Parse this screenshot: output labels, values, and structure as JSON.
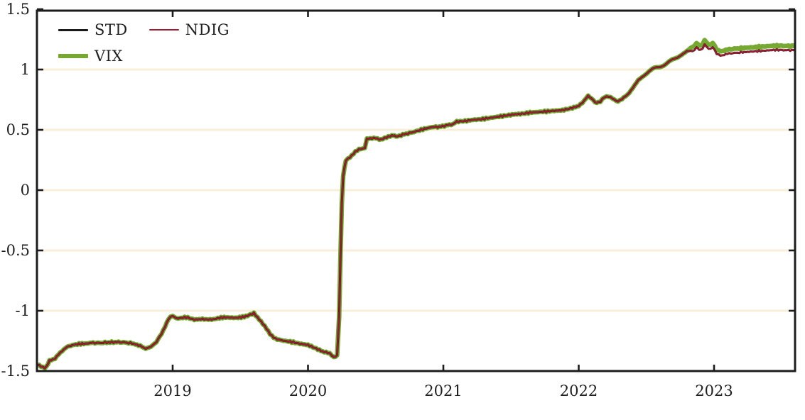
{
  "figure": {
    "background": "#ffffff",
    "axis_color": "#1c1c1c",
    "grid_color": "#f8efda",
    "tick_label_color": "#1f1f1f"
  },
  "chart_data": {
    "type": "line",
    "title": "",
    "xlabel": "",
    "ylabel": "",
    "grid": "horizontal",
    "legend_position": "top-left-inside",
    "x_axis": {
      "ticks": [
        2019,
        2020,
        2021,
        2022,
        2023
      ],
      "tick_labels": [
        "2019",
        "2020",
        "2021",
        "2022",
        "2023"
      ],
      "range": [
        2017.97,
        2023.62
      ]
    },
    "y_axis": {
      "ticks": [
        1.5,
        1,
        0.5,
        0,
        -0.5,
        -1,
        -1.5
      ],
      "tick_labels": [
        "1.5",
        "1",
        "0.5",
        "0",
        "-0.5",
        "-1",
        "-1.5"
      ],
      "range": [
        -1.5,
        1.5
      ],
      "gridline_ticks": [
        1,
        0.5,
        0,
        -0.5,
        -1
      ]
    },
    "x": [
      2017.97,
      2018.0,
      2018.04,
      2018.07,
      2018.09,
      2018.13,
      2018.17,
      2018.21,
      2018.26,
      2018.32,
      2018.4,
      2018.5,
      2018.6,
      2018.7,
      2018.76,
      2018.8,
      2018.84,
      2018.88,
      2018.93,
      2018.97,
      2019.0,
      2019.04,
      2019.1,
      2019.16,
      2019.22,
      2019.3,
      2019.38,
      2019.46,
      2019.54,
      2019.6,
      2019.64,
      2019.68,
      2019.72,
      2019.76,
      2019.82,
      2019.88,
      2019.94,
      2020.0,
      2020.06,
      2020.12,
      2020.16,
      2020.19,
      2020.215,
      2020.23,
      2020.24,
      2020.25,
      2020.26,
      2020.28,
      2020.31,
      2020.35,
      2020.39,
      2020.42,
      2020.435,
      2020.46,
      2020.5,
      2020.54,
      2020.58,
      2020.62,
      2020.65,
      2020.7,
      2020.75,
      2020.8,
      2020.86,
      2020.92,
      2020.97,
      2021.02,
      2021.07,
      2021.1,
      2021.16,
      2021.22,
      2021.28,
      2021.34,
      2021.4,
      2021.46,
      2021.52,
      2021.58,
      2021.64,
      2021.7,
      2021.76,
      2021.82,
      2021.88,
      2021.94,
      2022.0,
      2022.04,
      2022.07,
      2022.09,
      2022.12,
      2022.16,
      2022.19,
      2022.22,
      2022.25,
      2022.29,
      2022.32,
      2022.36,
      2022.4,
      2022.44,
      2022.48,
      2022.52,
      2022.56,
      2022.6,
      2022.64,
      2022.68,
      2022.72,
      2022.76,
      2022.8,
      2022.84,
      2022.87,
      2022.9,
      2022.93,
      2022.96,
      2022.99,
      2023.02,
      2023.06,
      2023.1,
      2023.15,
      2023.2,
      2023.26,
      2023.32,
      2023.38,
      2023.44,
      2023.5,
      2023.55,
      2023.6
    ],
    "series": [
      {
        "name": "STD",
        "color": "#1a1a1a",
        "line_width": 3,
        "values": [
          -1.44,
          -1.45,
          -1.47,
          -1.46,
          -1.41,
          -1.4,
          -1.35,
          -1.3,
          -1.28,
          -1.27,
          -1.265,
          -1.26,
          -1.265,
          -1.27,
          -1.29,
          -1.31,
          -1.3,
          -1.26,
          -1.16,
          -1.07,
          -1.04,
          -1.06,
          -1.05,
          -1.07,
          -1.065,
          -1.07,
          -1.06,
          -1.055,
          -1.045,
          -1.02,
          -1.07,
          -1.13,
          -1.19,
          -1.23,
          -1.245,
          -1.255,
          -1.27,
          -1.28,
          -1.31,
          -1.34,
          -1.36,
          -1.38,
          -1.37,
          -1.05,
          -0.55,
          -0.1,
          0.12,
          0.24,
          0.28,
          0.32,
          0.34,
          0.355,
          0.42,
          0.425,
          0.435,
          0.42,
          0.43,
          0.455,
          0.44,
          0.455,
          0.47,
          0.49,
          0.51,
          0.525,
          0.53,
          0.54,
          0.545,
          0.57,
          0.575,
          0.585,
          0.59,
          0.6,
          0.61,
          0.62,
          0.63,
          0.635,
          0.645,
          0.65,
          0.655,
          0.66,
          0.665,
          0.68,
          0.7,
          0.74,
          0.78,
          0.76,
          0.73,
          0.735,
          0.77,
          0.78,
          0.755,
          0.74,
          0.75,
          0.79,
          0.85,
          0.91,
          0.95,
          0.985,
          1.01,
          1.025,
          1.045,
          1.07,
          1.095,
          1.125,
          1.15,
          1.155,
          1.18,
          1.165,
          1.2,
          1.175,
          1.18,
          1.135,
          1.12,
          1.125,
          1.135,
          1.145,
          1.15,
          1.155,
          1.16,
          1.165,
          1.165,
          1.165,
          1.165
        ]
      },
      {
        "name": "NDIG",
        "color": "#a11a31",
        "line_width": 2.2,
        "values": [
          -1.44,
          -1.45,
          -1.47,
          -1.46,
          -1.41,
          -1.4,
          -1.35,
          -1.3,
          -1.28,
          -1.27,
          -1.265,
          -1.26,
          -1.265,
          -1.27,
          -1.29,
          -1.31,
          -1.3,
          -1.26,
          -1.16,
          -1.07,
          -1.04,
          -1.06,
          -1.05,
          -1.07,
          -1.065,
          -1.07,
          -1.06,
          -1.055,
          -1.045,
          -1.02,
          -1.07,
          -1.13,
          -1.19,
          -1.23,
          -1.245,
          -1.255,
          -1.27,
          -1.28,
          -1.31,
          -1.34,
          -1.36,
          -1.38,
          -1.37,
          -1.05,
          -0.55,
          -0.1,
          0.12,
          0.24,
          0.28,
          0.32,
          0.34,
          0.355,
          0.42,
          0.425,
          0.435,
          0.42,
          0.43,
          0.455,
          0.44,
          0.455,
          0.47,
          0.49,
          0.51,
          0.525,
          0.53,
          0.54,
          0.545,
          0.57,
          0.575,
          0.585,
          0.59,
          0.6,
          0.61,
          0.62,
          0.63,
          0.635,
          0.645,
          0.65,
          0.655,
          0.66,
          0.665,
          0.68,
          0.7,
          0.74,
          0.78,
          0.76,
          0.73,
          0.735,
          0.77,
          0.78,
          0.755,
          0.74,
          0.75,
          0.79,
          0.85,
          0.91,
          0.95,
          0.985,
          1.01,
          1.025,
          1.045,
          1.07,
          1.095,
          1.125,
          1.15,
          1.155,
          1.18,
          1.165,
          1.2,
          1.175,
          1.18,
          1.135,
          1.12,
          1.125,
          1.135,
          1.145,
          1.15,
          1.155,
          1.16,
          1.165,
          1.165,
          1.165,
          1.165
        ]
      },
      {
        "name": "VIX",
        "color": "#77a832",
        "line_width": 6.5,
        "values": [
          -1.44,
          -1.45,
          -1.47,
          -1.46,
          -1.41,
          -1.4,
          -1.35,
          -1.3,
          -1.28,
          -1.27,
          -1.265,
          -1.26,
          -1.265,
          -1.27,
          -1.29,
          -1.31,
          -1.3,
          -1.26,
          -1.16,
          -1.07,
          -1.04,
          -1.06,
          -1.05,
          -1.07,
          -1.065,
          -1.07,
          -1.06,
          -1.055,
          -1.045,
          -1.02,
          -1.07,
          -1.13,
          -1.19,
          -1.23,
          -1.245,
          -1.255,
          -1.27,
          -1.28,
          -1.31,
          -1.34,
          -1.36,
          -1.38,
          -1.37,
          -1.05,
          -0.55,
          -0.1,
          0.12,
          0.24,
          0.28,
          0.32,
          0.34,
          0.355,
          0.42,
          0.425,
          0.435,
          0.42,
          0.43,
          0.455,
          0.44,
          0.455,
          0.47,
          0.49,
          0.51,
          0.525,
          0.53,
          0.54,
          0.545,
          0.57,
          0.575,
          0.585,
          0.59,
          0.6,
          0.61,
          0.62,
          0.63,
          0.635,
          0.645,
          0.65,
          0.655,
          0.66,
          0.665,
          0.68,
          0.7,
          0.74,
          0.78,
          0.76,
          0.73,
          0.735,
          0.77,
          0.78,
          0.755,
          0.74,
          0.75,
          0.79,
          0.85,
          0.91,
          0.95,
          0.985,
          1.01,
          1.025,
          1.045,
          1.07,
          1.095,
          1.125,
          1.15,
          1.19,
          1.215,
          1.2,
          1.235,
          1.21,
          1.215,
          1.17,
          1.155,
          1.16,
          1.17,
          1.18,
          1.185,
          1.19,
          1.195,
          1.2,
          1.2,
          1.2,
          1.2
        ]
      }
    ],
    "draw_order": [
      2,
      0,
      1
    ],
    "noise_amplitude": 0.009
  },
  "legend": {
    "rows": [
      [
        {
          "series_index": 0,
          "label": "STD"
        },
        {
          "series_index": 1,
          "label": "NDIG"
        }
      ],
      [
        {
          "series_index": 2,
          "label": "VIX"
        }
      ]
    ]
  }
}
